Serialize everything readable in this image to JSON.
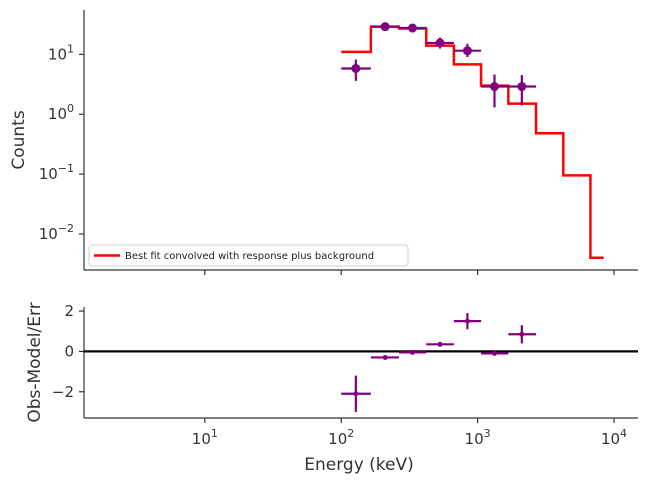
{
  "chart_data": [
    {
      "type": "line",
      "ylabel": "Counts",
      "xlabel": "",
      "xscale": "log",
      "yscale": "log",
      "xlim": [
        1.3,
        15000
      ],
      "ylim": [
        0.0025,
        55
      ],
      "x_ticks": [
        {
          "value": 10,
          "base": "10",
          "exp": "1"
        },
        {
          "value": 100,
          "base": "10",
          "exp": "2"
        },
        {
          "value": 1000,
          "base": "10",
          "exp": "3"
        },
        {
          "value": 10000,
          "base": "10",
          "exp": "4"
        }
      ],
      "y_ticks": [
        {
          "value": 0.01,
          "base": "10",
          "exp": "−2"
        },
        {
          "value": 0.1,
          "base": "10",
          "exp": "−1"
        },
        {
          "value": 1,
          "base": "10",
          "exp": "0"
        },
        {
          "value": 10,
          "base": "10",
          "exp": "1"
        }
      ],
      "legend": {
        "placement": "lower-left",
        "entries": [
          "Best fit convolved with response plus background"
        ]
      },
      "model_color": "#ff0000",
      "data_color": "#800080",
      "model_steps": [
        {
          "x0": 100,
          "x1": 165,
          "y": 11
        },
        {
          "x0": 165,
          "x1": 265,
          "y": 29
        },
        {
          "x0": 265,
          "x1": 420,
          "y": 27
        },
        {
          "x0": 420,
          "x1": 670,
          "y": 14
        },
        {
          "x0": 670,
          "x1": 1060,
          "y": 6.8
        },
        {
          "x0": 1060,
          "x1": 1680,
          "y": 3.0
        },
        {
          "x0": 1680,
          "x1": 2680,
          "y": 1.5
        },
        {
          "x0": 2680,
          "x1": 4250,
          "y": 0.48
        },
        {
          "x0": 4250,
          "x1": 6720,
          "y": 0.095
        },
        {
          "x0": 6720,
          "x1": 8400,
          "y": 0.004
        }
      ],
      "data_points": [
        {
          "x": 128,
          "xlo": 100,
          "xhi": 165,
          "y": 5.8,
          "ylo": 3.6,
          "yhi": 8.2
        },
        {
          "x": 210,
          "xlo": 165,
          "xhi": 265,
          "y": 29,
          "ylo": 26,
          "yhi": 33
        },
        {
          "x": 333,
          "xlo": 265,
          "xhi": 420,
          "y": 27.5,
          "ylo": 24,
          "yhi": 31
        },
        {
          "x": 530,
          "xlo": 420,
          "xhi": 670,
          "y": 15.5,
          "ylo": 12.5,
          "yhi": 19
        },
        {
          "x": 842,
          "xlo": 670,
          "xhi": 1060,
          "y": 11.5,
          "ylo": 9,
          "yhi": 15
        },
        {
          "x": 1330,
          "xlo": 1060,
          "xhi": 1680,
          "y": 2.9,
          "ylo": 1.3,
          "yhi": 4.6
        },
        {
          "x": 2110,
          "xlo": 1680,
          "xhi": 2680,
          "y": 2.9,
          "ylo": 1.4,
          "yhi": 4.5
        }
      ]
    },
    {
      "type": "scatter",
      "ylabel": "Obs-Model/Err",
      "xlabel": "Energy (keV)",
      "xscale": "log",
      "yscale": "linear",
      "xlim": [
        1.3,
        15000
      ],
      "ylim": [
        -3.3,
        2.2
      ],
      "x_ticks": [
        {
          "value": 10,
          "base": "10",
          "exp": "1"
        },
        {
          "value": 100,
          "base": "10",
          "exp": "2"
        },
        {
          "value": 1000,
          "base": "10",
          "exp": "3"
        },
        {
          "value": 10000,
          "base": "10",
          "exp": "4"
        }
      ],
      "y_ticks": [
        {
          "value": 2,
          "label": "2"
        },
        {
          "value": 0,
          "label": "0"
        },
        {
          "value": -2,
          "label": "−2"
        }
      ],
      "zero_line": 0,
      "data_color": "#800080",
      "residuals": [
        {
          "x": 128,
          "xlo": 100,
          "xhi": 165,
          "y": -2.1,
          "ylo": -3.0,
          "yhi": -1.2
        },
        {
          "x": 210,
          "xlo": 165,
          "xhi": 265,
          "y": -0.3,
          "ylo": -0.38,
          "yhi": -0.22
        },
        {
          "x": 333,
          "xlo": 265,
          "xhi": 420,
          "y": -0.05,
          "ylo": -0.12,
          "yhi": 0.02
        },
        {
          "x": 530,
          "xlo": 420,
          "xhi": 670,
          "y": 0.35,
          "ylo": 0.3,
          "yhi": 0.4
        },
        {
          "x": 842,
          "xlo": 670,
          "xhi": 1060,
          "y": 1.5,
          "ylo": 1.1,
          "yhi": 1.9
        },
        {
          "x": 1330,
          "xlo": 1060,
          "xhi": 1680,
          "y": -0.1,
          "ylo": -0.15,
          "yhi": -0.05
        },
        {
          "x": 2110,
          "xlo": 1680,
          "xhi": 2680,
          "y": 0.85,
          "ylo": 0.4,
          "yhi": 1.3
        }
      ]
    }
  ]
}
